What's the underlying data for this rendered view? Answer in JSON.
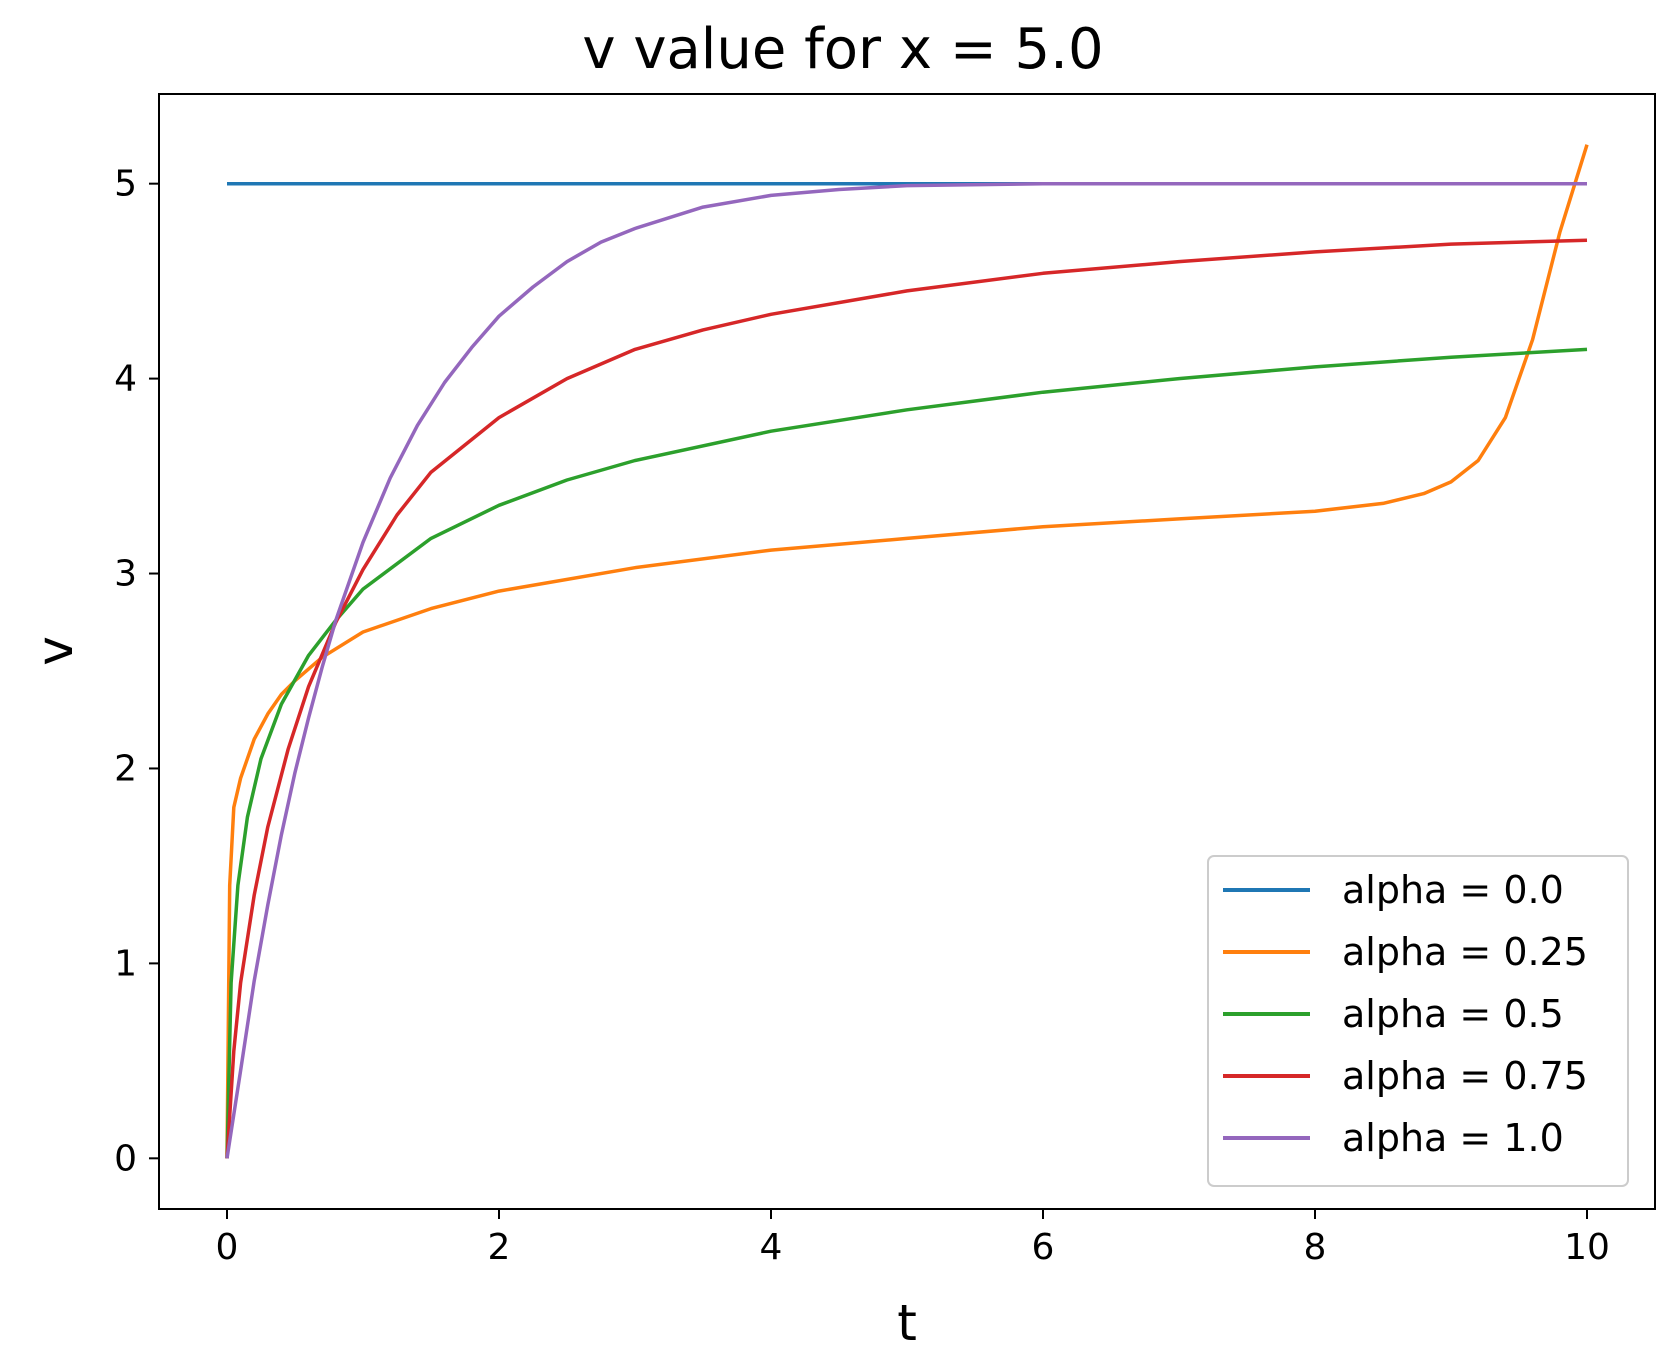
{
  "chart_data": {
    "type": "line",
    "title": "v value for x = 5.0",
    "xlabel": "t",
    "ylabel": "v",
    "xlim": [
      -0.5,
      10.5
    ],
    "ylim": [
      -0.26,
      5.46
    ],
    "xticks": [
      "0",
      "2",
      "4",
      "6",
      "8",
      "10"
    ],
    "yticks": [
      "0",
      "1",
      "2",
      "3",
      "4",
      "5"
    ],
    "grid": false,
    "legend_position": "lower-right",
    "series": [
      {
        "name": "alpha = 0.0",
        "color": "#1f77b4",
        "x": [
          0,
          10
        ],
        "y": [
          5.0,
          5.0
        ]
      },
      {
        "name": "alpha = 0.25",
        "color": "#ff7f0e",
        "x": [
          0,
          0.02,
          0.05,
          0.1,
          0.15,
          0.2,
          0.3,
          0.4,
          0.5,
          0.7,
          1.0,
          1.5,
          2.0,
          3.0,
          4.0,
          5.0,
          6.0,
          7.0,
          8.0,
          8.5,
          8.8,
          9.0,
          9.2,
          9.4,
          9.6,
          9.8,
          10.0
        ],
        "y": [
          0.0,
          1.4,
          1.8,
          1.95,
          2.05,
          2.15,
          2.28,
          2.38,
          2.45,
          2.57,
          2.7,
          2.82,
          2.91,
          3.03,
          3.12,
          3.18,
          3.24,
          3.28,
          3.32,
          3.36,
          3.41,
          3.47,
          3.58,
          3.8,
          4.2,
          4.75,
          5.2
        ]
      },
      {
        "name": "alpha = 0.5",
        "color": "#2ca02c",
        "x": [
          0,
          0.03,
          0.08,
          0.15,
          0.25,
          0.4,
          0.6,
          0.8,
          1.0,
          1.5,
          2.0,
          2.5,
          3.0,
          4.0,
          5.0,
          6.0,
          7.0,
          8.0,
          9.0,
          10.0
        ],
        "y": [
          0.0,
          0.9,
          1.4,
          1.75,
          2.05,
          2.33,
          2.58,
          2.76,
          2.92,
          3.18,
          3.35,
          3.48,
          3.58,
          3.73,
          3.84,
          3.93,
          4.0,
          4.06,
          4.11,
          4.15
        ]
      },
      {
        "name": "alpha = 0.75",
        "color": "#d62728",
        "x": [
          0,
          0.05,
          0.1,
          0.2,
          0.3,
          0.45,
          0.6,
          0.8,
          1.0,
          1.25,
          1.5,
          2.0,
          2.5,
          3.0,
          3.5,
          4.0,
          5.0,
          6.0,
          7.0,
          8.0,
          9.0,
          10.0
        ],
        "y": [
          0.0,
          0.55,
          0.9,
          1.35,
          1.7,
          2.1,
          2.42,
          2.75,
          3.02,
          3.3,
          3.52,
          3.8,
          4.0,
          4.15,
          4.25,
          4.33,
          4.45,
          4.54,
          4.6,
          4.65,
          4.69,
          4.71
        ]
      },
      {
        "name": "alpha = 1.0",
        "color": "#9467bd",
        "x": [
          0,
          0.1,
          0.2,
          0.3,
          0.4,
          0.5,
          0.6,
          0.7,
          0.8,
          1.0,
          1.2,
          1.4,
          1.6,
          1.8,
          2.0,
          2.25,
          2.5,
          2.75,
          3.0,
          3.5,
          4.0,
          4.5,
          5.0,
          6.0,
          7.0,
          8.0,
          10.0
        ],
        "y": [
          0.0,
          0.45,
          0.91,
          1.3,
          1.66,
          1.98,
          2.26,
          2.52,
          2.76,
          3.16,
          3.49,
          3.76,
          3.98,
          4.16,
          4.32,
          4.47,
          4.6,
          4.7,
          4.77,
          4.88,
          4.94,
          4.97,
          4.99,
          5.0,
          5.0,
          5.0,
          5.0
        ]
      }
    ]
  }
}
